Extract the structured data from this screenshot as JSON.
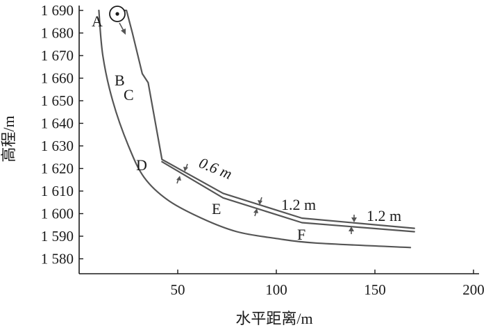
{
  "axes": {
    "x_title": "水平距离/m",
    "y_title": "高程/m",
    "x_ticks": [
      {
        "value": 50,
        "label": "50"
      },
      {
        "value": 100,
        "label": "100"
      },
      {
        "value": 150,
        "label": "150"
      },
      {
        "value": 200,
        "label": "200"
      }
    ],
    "y_ticks": [
      {
        "value": 1690,
        "label": "1 690"
      },
      {
        "value": 1680,
        "label": "1 680"
      },
      {
        "value": 1670,
        "label": "1 670"
      },
      {
        "value": 1660,
        "label": "1 660"
      },
      {
        "value": 1650,
        "label": "1 650"
      },
      {
        "value": 1640,
        "label": "1 640"
      },
      {
        "value": 1630,
        "label": "1 630"
      },
      {
        "value": 1620,
        "label": "1 620"
      },
      {
        "value": 1610,
        "label": "1 610"
      },
      {
        "value": 1600,
        "label": "1 600"
      },
      {
        "value": 1590,
        "label": "1 590"
      },
      {
        "value": 1580,
        "label": "1 580"
      }
    ]
  },
  "point_labels": {
    "a": "A",
    "b": "B",
    "c": "C",
    "d": "D",
    "e": "E",
    "f": "F"
  },
  "thickness_labels": {
    "first": "0.6 m",
    "second": "1.2 m",
    "third": "1.2 m"
  },
  "profiles": {
    "upper_surface": [
      [
        16,
        1690
      ],
      [
        24,
        1690
      ],
      [
        27,
        1680
      ],
      [
        32,
        1662
      ],
      [
        35,
        1658
      ],
      [
        42,
        1624
      ],
      [
        73,
        1609
      ],
      [
        113,
        1598
      ],
      [
        170,
        1593.5
      ]
    ],
    "lower_surface": [
      [
        42,
        1623
      ],
      [
        73,
        1607
      ],
      [
        113,
        1596
      ],
      [
        170,
        1592
      ]
    ],
    "bed_profile": [
      [
        10,
        1690
      ],
      [
        12,
        1670
      ],
      [
        17,
        1650
      ],
      [
        25,
        1630
      ],
      [
        33,
        1616
      ],
      [
        45,
        1606
      ],
      [
        62,
        1598
      ],
      [
        80,
        1592
      ],
      [
        100,
        1589
      ],
      [
        120,
        1587
      ],
      [
        168,
        1585
      ]
    ]
  }
}
